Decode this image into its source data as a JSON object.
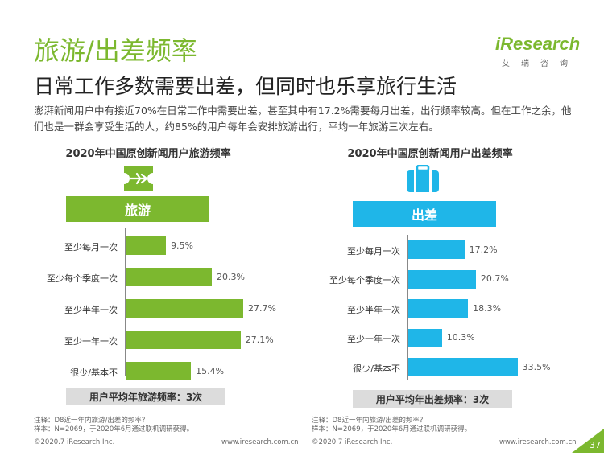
{
  "header": {
    "title": "旅游/出差频率",
    "subtitle": "日常工作多数需要出差，但同时也乐享旅行生活",
    "body": "澎湃新闻用户中有接近70%在日常工作中需要出差，甚至其中有17.2%需要每月出差，出行频率较高。但在工作之余，他们也是一群会享受生活的人，约85%的用户每年会安排旅游出行，平均一年旅游三次左右。"
  },
  "logo": {
    "word": "iResearch",
    "cn": "艾瑞咨询"
  },
  "colors": {
    "green": "#7cb82f",
    "blue": "#1fb6e8",
    "summary_bg": "#dcdcdc"
  },
  "chart_data": [
    {
      "type": "bar",
      "orientation": "horizontal",
      "title": "2020年中国原创新闻用户旅游频率",
      "banner": "旅游",
      "icon": "airplane-ticket-icon",
      "color": "#7cb82f",
      "categories": [
        "至少每月一次",
        "至少每个季度一次",
        "至少半年一次",
        "至少一年一次",
        "很少/基本不"
      ],
      "values": [
        9.5,
        20.3,
        27.7,
        27.1,
        15.4
      ],
      "value_labels": [
        "9.5%",
        "20.3%",
        "27.7%",
        "27.1%",
        "15.4%"
      ],
      "summary": "用户平均年旅游频率：3次"
    },
    {
      "type": "bar",
      "orientation": "horizontal",
      "title": "2020年中国原创新闻用户出差频率",
      "banner": "出差",
      "icon": "suitcase-icon",
      "color": "#1fb6e8",
      "categories": [
        "至少每月一次",
        "至少每个季度一次",
        "至少半年一次",
        "至少一年一次",
        "很少/基本不"
      ],
      "values": [
        17.2,
        20.7,
        18.3,
        10.3,
        33.5
      ],
      "value_labels": [
        "17.2%",
        "20.7%",
        "18.3%",
        "10.3%",
        "33.5%"
      ],
      "summary": "用户平均年出差频率：3次"
    }
  ],
  "notes": {
    "left": [
      "注释：D8近一年内旅游/出差的频率？",
      "样本：N=2069，于2020年6月通过联机调研获得。"
    ],
    "right": [
      "注释：D8近一年内旅游/出差的频率？",
      "样本：N=2069，于2020年6月通过联机调研获得。"
    ]
  },
  "footer": {
    "copyright": "©2020.7 iResearch Inc.",
    "site": "www.iresearch.com.cn",
    "page": "37"
  }
}
